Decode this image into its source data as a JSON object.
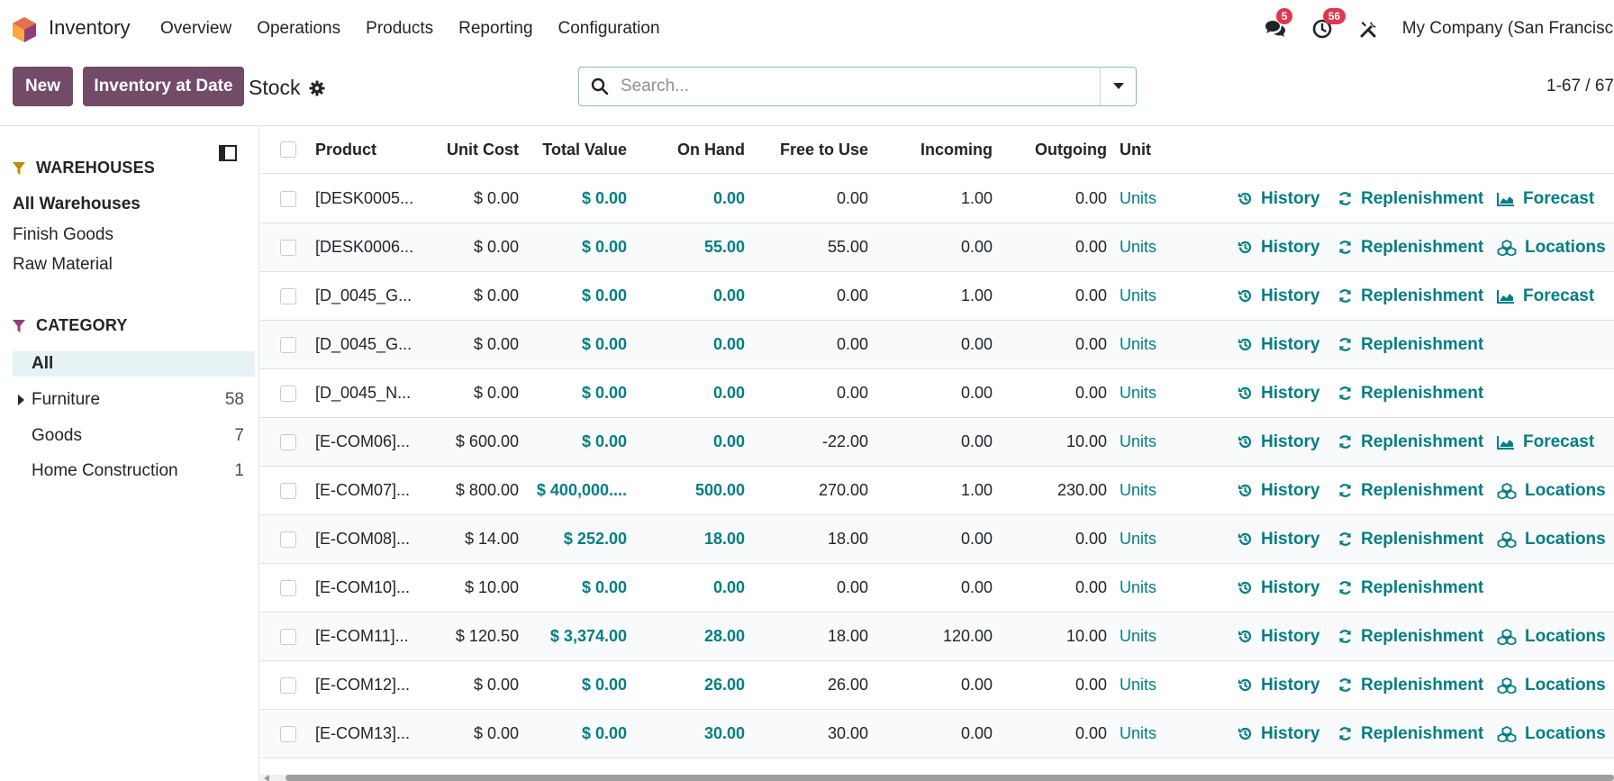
{
  "app": {
    "name": "Inventory"
  },
  "menu": [
    "Overview",
    "Operations",
    "Products",
    "Reporting",
    "Configuration"
  ],
  "systray": {
    "messages_count": "5",
    "activities_count": "56",
    "company": "My Company (San Francisco)"
  },
  "control": {
    "new_label": "New",
    "inventory_at_date_label": "Inventory at Date",
    "breadcrumb": "Stock",
    "search_placeholder": "Search...",
    "pager": "1-67 / 67"
  },
  "sidebar": {
    "warehouses_title": "WAREHOUSES",
    "warehouses": [
      "All Warehouses",
      "Finish Goods",
      "Raw Material"
    ],
    "category_title": "CATEGORY",
    "categories": [
      {
        "label": "All",
        "count": ""
      },
      {
        "label": "Furniture",
        "count": "58"
      },
      {
        "label": "Goods",
        "count": "7"
      },
      {
        "label": "Home Construction",
        "count": "1"
      }
    ]
  },
  "table": {
    "columns": [
      "Product",
      "Unit Cost",
      "Total Value",
      "On Hand",
      "Free to Use",
      "Incoming",
      "Outgoing",
      "Unit"
    ],
    "actions": {
      "history": "History",
      "replenishment": "Replenishment",
      "forecast": "Forecast",
      "locations": "Locations"
    },
    "rows": [
      {
        "product": "[DESK0005...",
        "unit_cost": "$ 0.00",
        "total_value": "$ 0.00",
        "on_hand": "0.00",
        "free": "0.00",
        "incoming": "1.00",
        "outgoing": "0.00",
        "unit": "Units",
        "third": "forecast"
      },
      {
        "product": "[DESK0006...",
        "unit_cost": "$ 0.00",
        "total_value": "$ 0.00",
        "on_hand": "55.00",
        "free": "55.00",
        "incoming": "0.00",
        "outgoing": "0.00",
        "unit": "Units",
        "third": "locations"
      },
      {
        "product": "[D_0045_G...",
        "unit_cost": "$ 0.00",
        "total_value": "$ 0.00",
        "on_hand": "0.00",
        "free": "0.00",
        "incoming": "1.00",
        "outgoing": "0.00",
        "unit": "Units",
        "third": "forecast"
      },
      {
        "product": "[D_0045_G...",
        "unit_cost": "$ 0.00",
        "total_value": "$ 0.00",
        "on_hand": "0.00",
        "free": "0.00",
        "incoming": "0.00",
        "outgoing": "0.00",
        "unit": "Units",
        "third": ""
      },
      {
        "product": "[D_0045_N...",
        "unit_cost": "$ 0.00",
        "total_value": "$ 0.00",
        "on_hand": "0.00",
        "free": "0.00",
        "incoming": "0.00",
        "outgoing": "0.00",
        "unit": "Units",
        "third": ""
      },
      {
        "product": "[E-COM06]...",
        "unit_cost": "$ 600.00",
        "total_value": "$ 0.00",
        "on_hand": "0.00",
        "free": "-22.00",
        "incoming": "0.00",
        "outgoing": "10.00",
        "unit": "Units",
        "third": "forecast"
      },
      {
        "product": "[E-COM07]...",
        "unit_cost": "$ 800.00",
        "total_value": "$ 400,000....",
        "on_hand": "500.00",
        "free": "270.00",
        "incoming": "1.00",
        "outgoing": "230.00",
        "unit": "Units",
        "third": "locations"
      },
      {
        "product": "[E-COM08]...",
        "unit_cost": "$ 14.00",
        "total_value": "$ 252.00",
        "on_hand": "18.00",
        "free": "18.00",
        "incoming": "0.00",
        "outgoing": "0.00",
        "unit": "Units",
        "third": "locations"
      },
      {
        "product": "[E-COM10]...",
        "unit_cost": "$ 10.00",
        "total_value": "$ 0.00",
        "on_hand": "0.00",
        "free": "0.00",
        "incoming": "0.00",
        "outgoing": "0.00",
        "unit": "Units",
        "third": ""
      },
      {
        "product": "[E-COM11]...",
        "unit_cost": "$ 120.50",
        "total_value": "$ 3,374.00",
        "on_hand": "28.00",
        "free": "18.00",
        "incoming": "120.00",
        "outgoing": "10.00",
        "unit": "Units",
        "third": "locations"
      },
      {
        "product": "[E-COM12]...",
        "unit_cost": "$ 0.00",
        "total_value": "$ 0.00",
        "on_hand": "26.00",
        "free": "26.00",
        "incoming": "0.00",
        "outgoing": "0.00",
        "unit": "Units",
        "third": "locations"
      },
      {
        "product": "[E-COM13]...",
        "unit_cost": "$ 0.00",
        "total_value": "$ 0.00",
        "on_hand": "30.00",
        "free": "30.00",
        "incoming": "0.00",
        "outgoing": "0.00",
        "unit": "Units",
        "third": "locations"
      }
    ]
  },
  "colors": {
    "primary": "#714b67",
    "accent": "#017e84",
    "badge": "#e0364e",
    "warehouse_filter": "#c58b00",
    "category_filter": "#8e3e76"
  }
}
